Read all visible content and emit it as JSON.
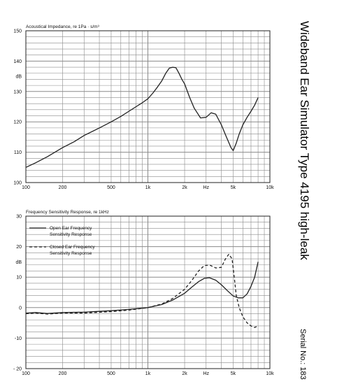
{
  "page": {
    "title": "Wideband Ear Simulator Type 4195 high-leak",
    "serial": "Serial No.: 183"
  },
  "colors": {
    "line": "#222222",
    "grid": "#8a8a8a",
    "background": "#ffffff"
  },
  "chart_data": [
    {
      "type": "line",
      "title": "Acoustical Impedance, re 1Pa · s/m³",
      "ylabel": "dB",
      "xscale": "log",
      "xlim": [
        100,
        10000
      ],
      "ylim": [
        100,
        150
      ],
      "grid": true,
      "xticks": [
        {
          "value": 100,
          "label": "100"
        },
        {
          "value": 200,
          "label": "200"
        },
        {
          "value": 500,
          "label": "500"
        },
        {
          "value": 1000,
          "label": "1k"
        },
        {
          "value": 2000,
          "label": "2k"
        },
        {
          "value": 3000,
          "label": "Hz"
        },
        {
          "value": 5000,
          "label": "5k"
        },
        {
          "value": 10000,
          "label": "10k"
        }
      ],
      "yticks": [
        {
          "value": 150,
          "label": "150"
        },
        {
          "value": 140,
          "label": "140"
        },
        {
          "value": 135,
          "label": "dB"
        },
        {
          "value": 130,
          "label": "130"
        },
        {
          "value": 120,
          "label": "120"
        },
        {
          "value": 110,
          "label": "110"
        },
        {
          "value": 100,
          "label": "100"
        }
      ],
      "series": [
        {
          "style": "solid",
          "x": [
            100,
            120,
            150,
            200,
            250,
            300,
            400,
            500,
            600,
            700,
            800,
            900,
            1000,
            1100,
            1200,
            1300,
            1400,
            1500,
            1600,
            1700,
            1800,
            1900,
            2000,
            2200,
            2400,
            2700,
            3000,
            3300,
            3600,
            4000,
            4400,
            4800,
            5000,
            5300,
            5600,
            6000,
            6500,
            7000,
            7500,
            8000
          ],
          "y": [
            105,
            106.5,
            108.5,
            111.5,
            113.5,
            115.5,
            118,
            120,
            121.8,
            123.5,
            125,
            126.3,
            127.6,
            129.5,
            131.5,
            133.5,
            136,
            137.7,
            138,
            137.8,
            136,
            134,
            132.5,
            128,
            124.5,
            121.3,
            121.5,
            123,
            122.5,
            119,
            115,
            111.5,
            110.5,
            113,
            116,
            119,
            121.5,
            123.5,
            125.5,
            128
          ]
        }
      ]
    },
    {
      "type": "line",
      "title": "Frequency Sensitivity Response, re 1kHz",
      "ylabel": "dB",
      "xscale": "log",
      "xlim": [
        100,
        10000
      ],
      "ylim": [
        -20,
        30
      ],
      "grid": true,
      "xticks": [
        {
          "value": 100,
          "label": "100"
        },
        {
          "value": 200,
          "label": "200"
        },
        {
          "value": 500,
          "label": "500"
        },
        {
          "value": 1000,
          "label": "1k"
        },
        {
          "value": 2000,
          "label": "2k"
        },
        {
          "value": 3000,
          "label": "Hz"
        },
        {
          "value": 5000,
          "label": "5k"
        },
        {
          "value": 10000,
          "label": "10k"
        }
      ],
      "yticks": [
        {
          "value": 30,
          "label": "30"
        },
        {
          "value": 20,
          "label": "20"
        },
        {
          "value": 15,
          "label": "dB"
        },
        {
          "value": 10,
          "label": "10"
        },
        {
          "value": 0,
          "label": "0"
        },
        {
          "value": -10,
          "label": "-10"
        },
        {
          "value": -20,
          "label": "- 20"
        }
      ],
      "legend": {
        "placement": "top-left",
        "entries": [
          {
            "style": "solid",
            "lines": [
              "Open Ear Frequency",
              "Sensitivity Response"
            ]
          },
          {
            "style": "dashed",
            "lines": [
              "Closed Ear Frequency",
              "Sensitivity Response"
            ]
          }
        ]
      },
      "series": [
        {
          "style": "solid",
          "x": [
            100,
            120,
            150,
            200,
            300,
            500,
            700,
            1000,
            1300,
            1600,
            2000,
            2300,
            2600,
            2900,
            3200,
            3600,
            4000,
            4500,
            5000,
            5500,
            6000,
            6500,
            7000,
            7500,
            8000
          ],
          "y": [
            -1.8,
            -1.6,
            -1.9,
            -1.6,
            -1.5,
            -1,
            -0.6,
            0,
            1,
            2.5,
            4.7,
            6.8,
            8.5,
            9.6,
            9.8,
            9,
            7.5,
            5.5,
            3.8,
            3.2,
            3.2,
            4.5,
            7,
            10,
            15
          ]
        },
        {
          "style": "dashed",
          "x": [
            100,
            120,
            150,
            200,
            300,
            500,
            700,
            1000,
            1300,
            1600,
            2000,
            2300,
            2600,
            2900,
            3200,
            3600,
            4000,
            4300,
            4600,
            4900,
            5100,
            5300,
            5600,
            6000,
            6500,
            7000,
            7500,
            8000
          ],
          "y": [
            -2,
            -1.8,
            -2.1,
            -1.8,
            -1.8,
            -1.3,
            -0.8,
            0,
            1.2,
            3,
            6,
            9,
            12,
            13.8,
            14,
            13,
            13.2,
            15.8,
            17.5,
            16,
            10,
            4,
            0,
            -3,
            -5,
            -6,
            -6.5,
            -6
          ]
        }
      ]
    }
  ]
}
